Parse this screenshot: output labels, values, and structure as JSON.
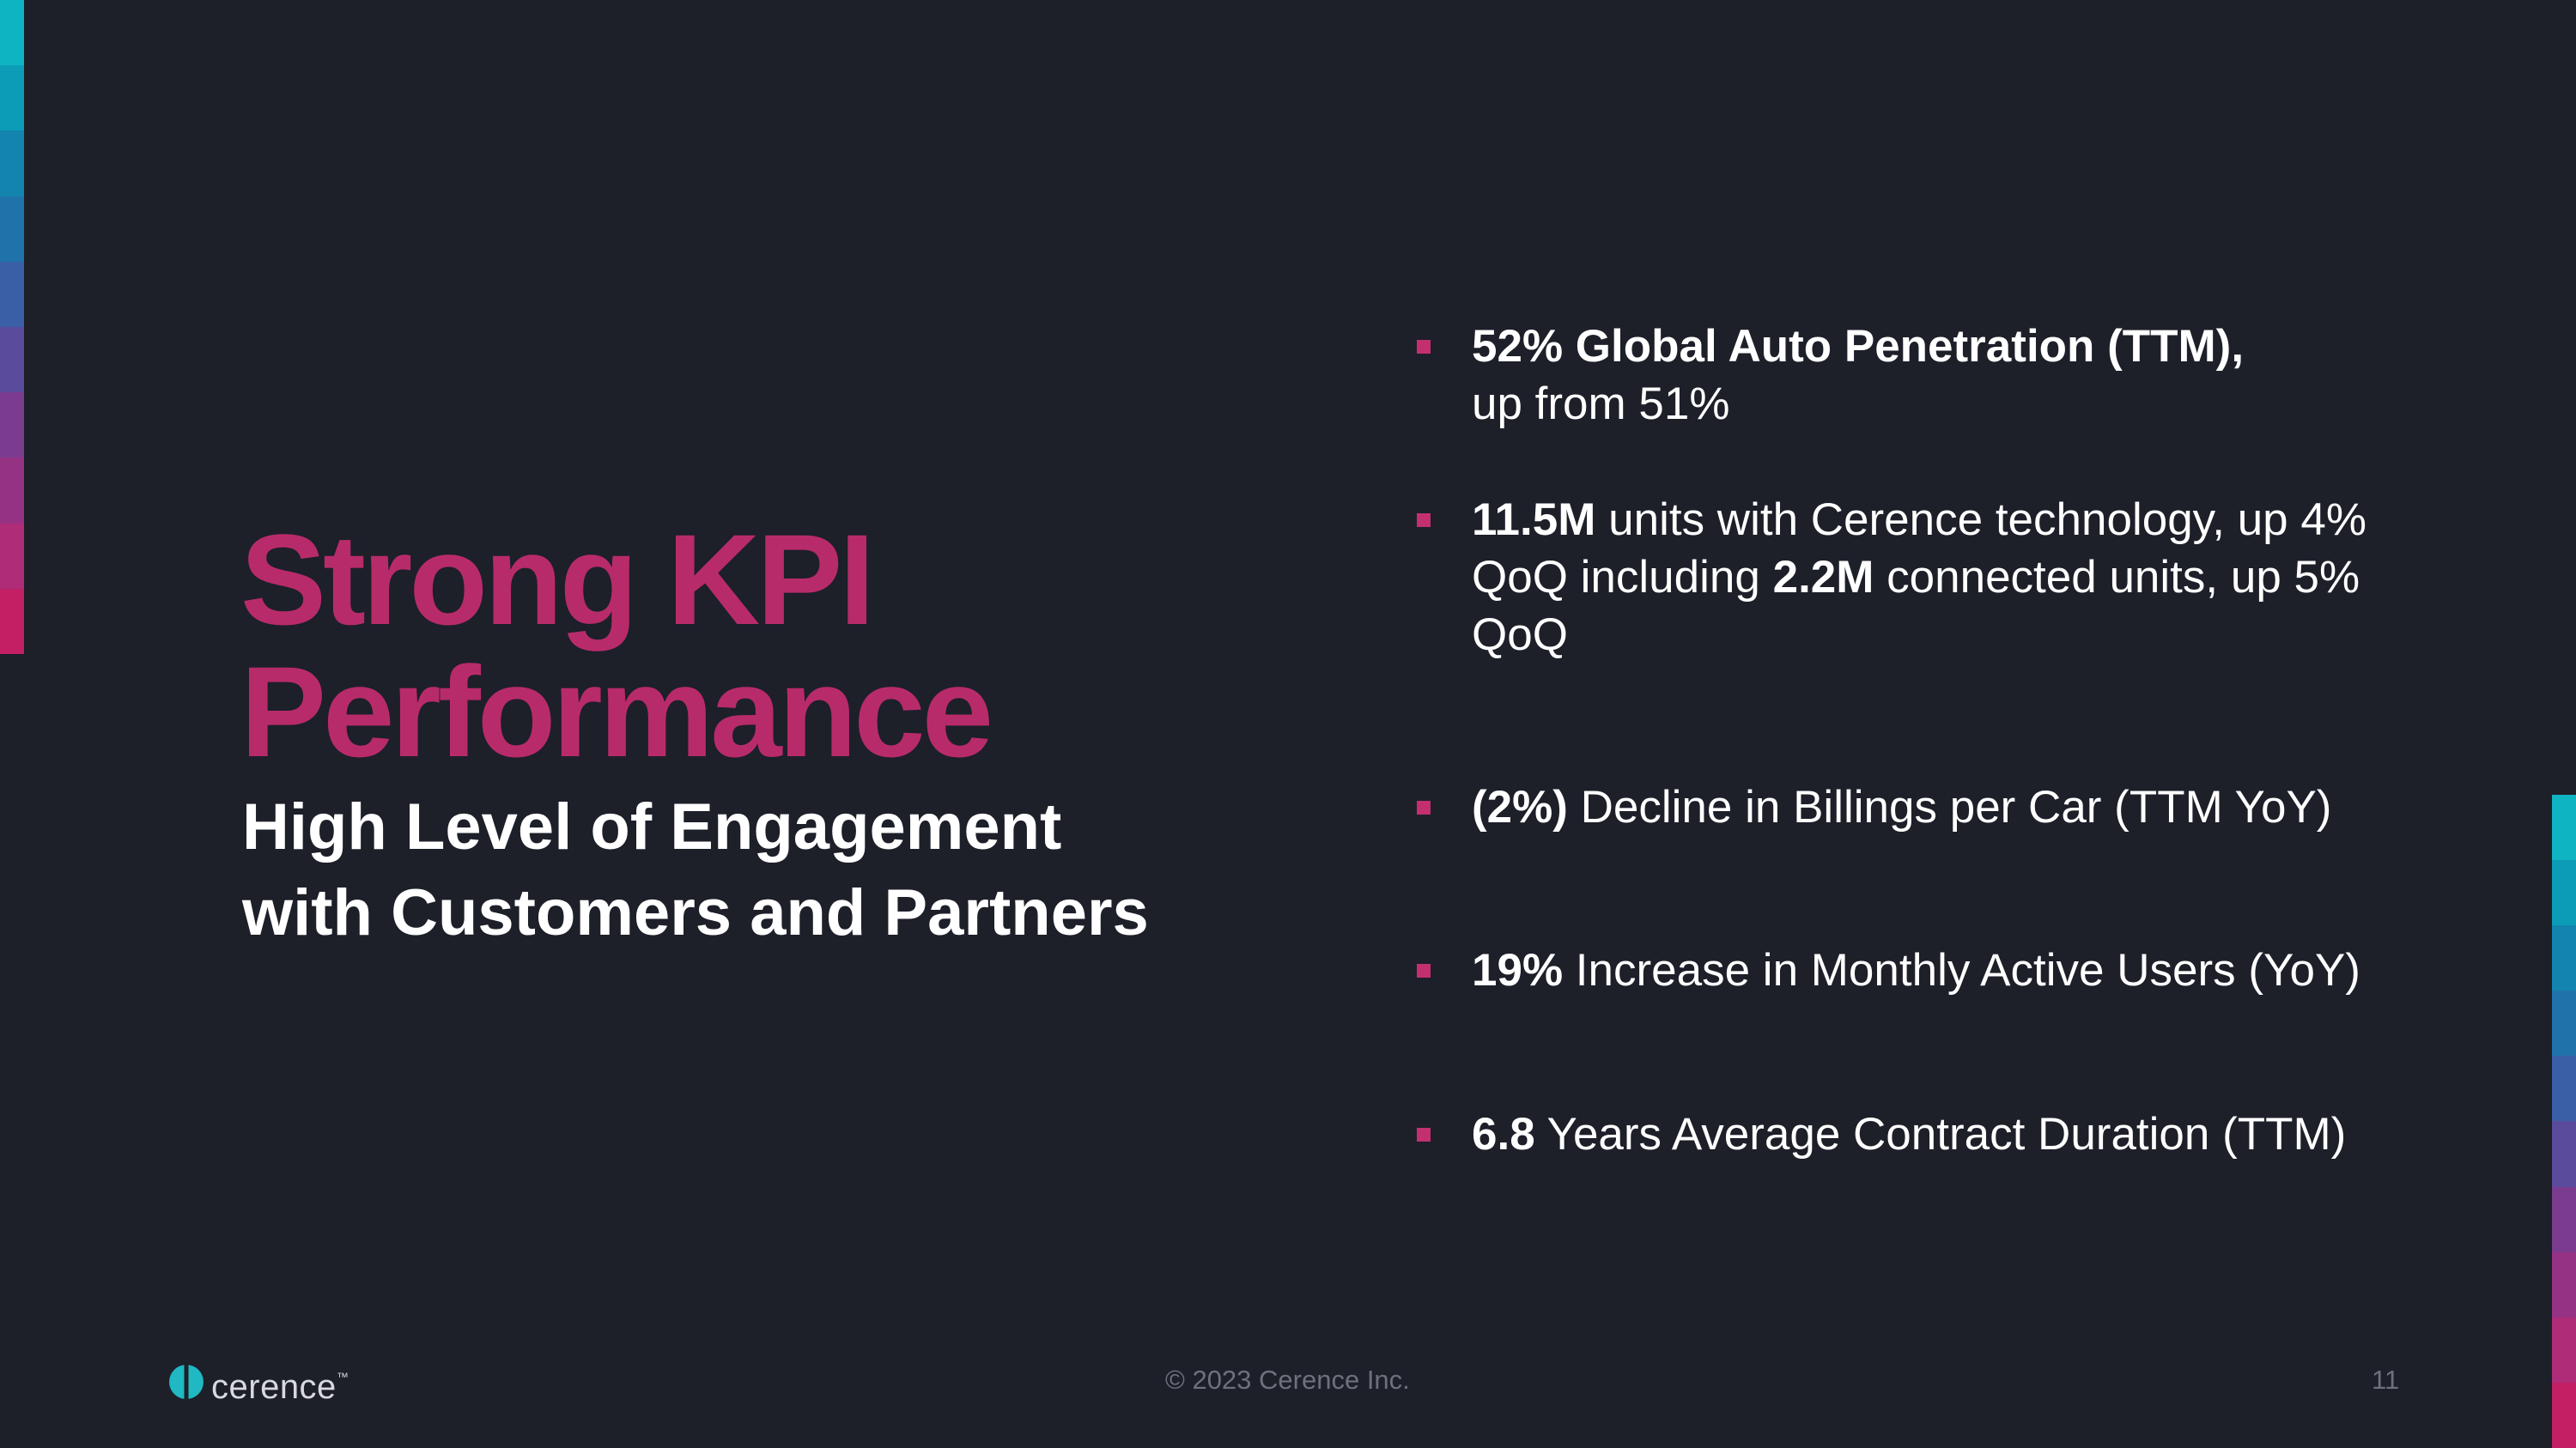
{
  "slide": {
    "title_lines": [
      "Strong KPI",
      "Performance"
    ],
    "subtitle_lines": [
      "High Level of Engagement",
      "with Customers and Partners"
    ],
    "bullets": [
      {
        "lines": [
          [
            {
              "bold": "52% Global Auto Penetration (TTM),"
            }
          ],
          [
            {
              "text": "up from 51%"
            }
          ]
        ]
      },
      {
        "lines": [
          [
            {
              "bold": "11.5M"
            },
            {
              "text": " units with Cerence technology, up 4%"
            }
          ],
          [
            {
              "text": "QoQ including "
            },
            {
              "bold": "2.2M"
            },
            {
              "text": " connected units, up 5%"
            }
          ],
          [
            {
              "text": "QoQ"
            }
          ]
        ]
      },
      {
        "lines": [
          [
            {
              "bold": "(2%)"
            },
            {
              "text": " Decline in Billings per Car (TTM YoY)"
            }
          ]
        ]
      },
      {
        "lines": [
          [
            {
              "bold": "19%"
            },
            {
              "text": " Increase in Monthly Active Users (YoY)"
            }
          ]
        ]
      },
      {
        "lines": [
          [
            {
              "bold": "6.8"
            },
            {
              "text": " Years Average Contract Duration (TTM)"
            }
          ]
        ]
      }
    ]
  },
  "footer": {
    "logo_text": "cerence",
    "logo_mark": "™",
    "copyright": "© 2023 Cerence Inc.",
    "page_number": "11"
  },
  "colors": {
    "background": "#1d1f29",
    "accent": "#b82b6b",
    "bullet_marker": "#c4306f",
    "logo_teal": "#1fb8c3",
    "strip_left": [
      "#0fb4c2",
      "#0c9cb8",
      "#1284ad",
      "#1f73aa",
      "#3a5fa6",
      "#5a4b9c",
      "#7b3b8f",
      "#963283",
      "#ae2c78",
      "#c21f64"
    ],
    "strip_right": [
      "#0fb4c2",
      "#0c9cb8",
      "#1284ad",
      "#1f73aa",
      "#3a5fa6",
      "#5a4b9c",
      "#7b3b8f",
      "#963283",
      "#ae2c78",
      "#c21f64"
    ]
  }
}
